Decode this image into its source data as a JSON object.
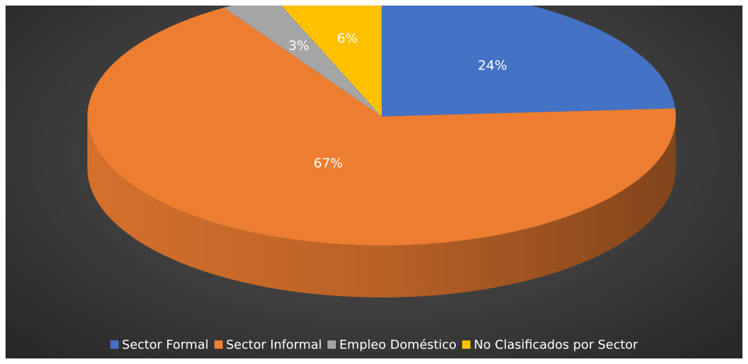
{
  "chart_data": {
    "type": "pie",
    "title": "",
    "categories": [
      "Sector Formal",
      "Sector Informal",
      "Empleo Doméstico",
      "No Clasificados por Sector"
    ],
    "values": [
      24,
      67,
      3,
      6
    ],
    "labels": [
      "24%",
      "67%",
      "3%",
      "6%"
    ],
    "colors": [
      "#4472C4",
      "#ED7D31",
      "#A5A5A5",
      "#FFC000"
    ],
    "style": "3d-pie",
    "legend_position": "bottom"
  }
}
